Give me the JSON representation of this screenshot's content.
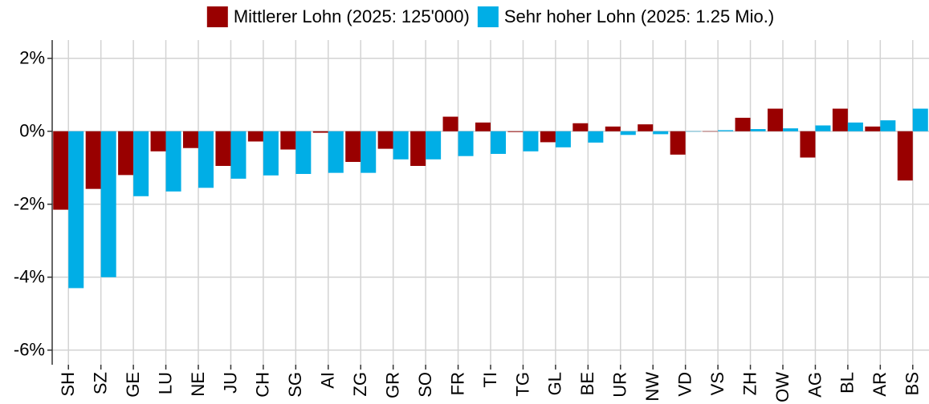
{
  "chart_data": {
    "type": "bar",
    "categories": [
      "SH",
      "SZ",
      "GE",
      "LU",
      "NE",
      "JU",
      "CH",
      "SG",
      "AI",
      "ZG",
      "GR",
      "SO",
      "FR",
      "TI",
      "TG",
      "GL",
      "BE",
      "UR",
      "NW",
      "VD",
      "VS",
      "ZH",
      "OW",
      "AG",
      "BL",
      "AR",
      "BS"
    ],
    "series": [
      {
        "name": "Mittlerer Lohn (2025: 125'000)",
        "color": "#990000",
        "values": [
          -2.15,
          -1.58,
          -1.2,
          -0.55,
          -0.46,
          -0.95,
          -0.28,
          -0.5,
          -0.04,
          -0.84,
          -0.48,
          -0.95,
          0.4,
          0.24,
          -0.02,
          -0.3,
          0.22,
          0.13,
          0.19,
          -0.64,
          -0.01,
          0.37,
          0.62,
          -0.72,
          0.62,
          0.13,
          -1.35
        ]
      },
      {
        "name": "Sehr hoher Lohn (2025: 1.25 Mio.)",
        "color": "#00aee6",
        "values": [
          -4.3,
          -4.0,
          -1.78,
          -1.65,
          -1.55,
          -1.3,
          -1.21,
          -1.17,
          -1.14,
          -1.14,
          -0.77,
          -0.77,
          -0.68,
          -0.62,
          -0.55,
          -0.44,
          -0.31,
          -0.1,
          -0.08,
          -0.01,
          0.03,
          0.06,
          0.08,
          0.16,
          0.24,
          0.3,
          0.62
        ]
      }
    ],
    "ylim": [
      -6.4,
      2.5
    ],
    "yticks": [
      {
        "value": 2,
        "label": "2%"
      },
      {
        "value": 0,
        "label": "0%"
      },
      {
        "value": -2,
        "label": "-2%"
      },
      {
        "value": -4,
        "label": "-4%"
      },
      {
        "value": -6,
        "label": "-6%"
      }
    ],
    "grid": true,
    "legend": "top"
  }
}
